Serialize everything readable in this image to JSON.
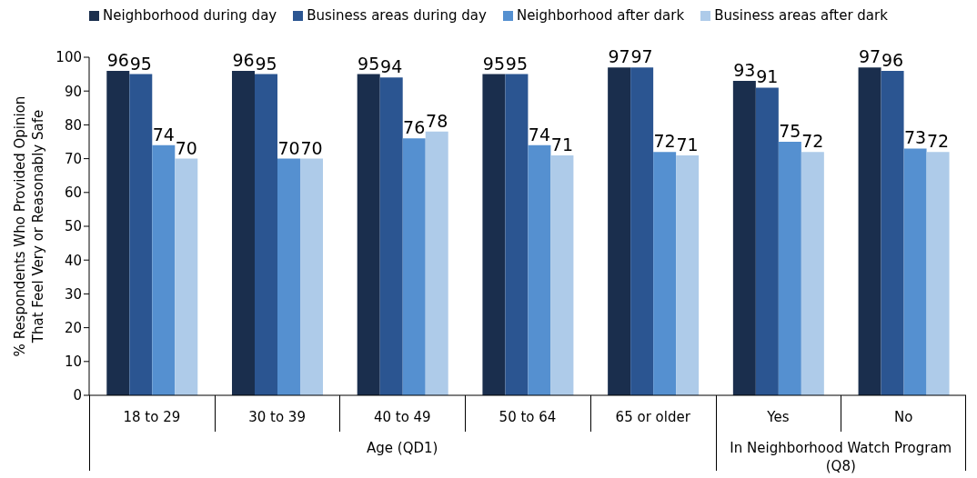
{
  "chart_data": {
    "type": "bar",
    "ylabel": "% Respondents Who Provided Opinion That Feel Very or Reasonably Safe",
    "categories": [
      "18 to 29",
      "30 to 39",
      "40 to 49",
      "50 to 64",
      "65 or older",
      "Yes",
      "No"
    ],
    "series": [
      {
        "name": "Neighborhood during day",
        "color": "#1a2e4d",
        "values": [
          96,
          96,
          95,
          95,
          97,
          93,
          97
        ]
      },
      {
        "name": "Business areas during day",
        "color": "#2b5591",
        "values": [
          95,
          95,
          94,
          95,
          97,
          91,
          96
        ]
      },
      {
        "name": "Neighborhood after dark",
        "color": "#5590d0",
        "values": [
          74,
          70,
          76,
          74,
          72,
          75,
          73
        ]
      },
      {
        "name": "Business areas after dark",
        "color": "#aecbe9",
        "values": [
          70,
          70,
          78,
          71,
          71,
          72,
          72
        ]
      }
    ],
    "ylim": [
      0,
      100
    ],
    "yticks": [
      0,
      10,
      20,
      30,
      40,
      50,
      60,
      70,
      80,
      90,
      100
    ],
    "legend": "top",
    "data_labels": true,
    "annotations": [
      "Age (QD1)",
      "In Neighborhood Watch Program (Q8)"
    ]
  }
}
